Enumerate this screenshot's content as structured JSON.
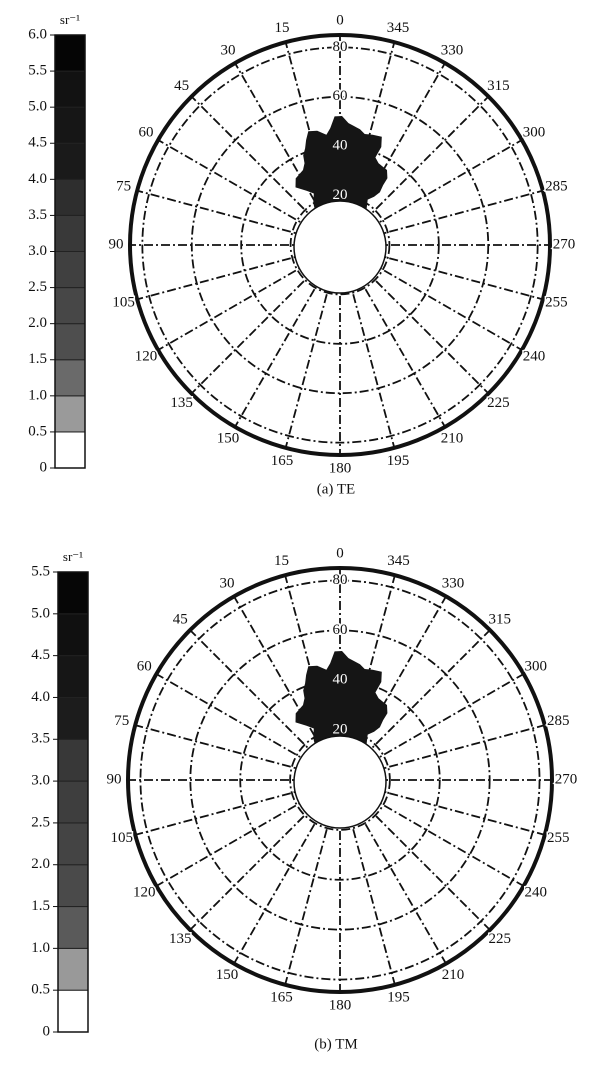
{
  "chart_data": [
    {
      "type": "polar",
      "caption": "(a) TE",
      "theta_zero": "top",
      "theta_direction": "counterclockwise",
      "thetaticks": [
        0,
        15,
        30,
        45,
        60,
        75,
        90,
        105,
        120,
        135,
        150,
        165,
        180,
        195,
        210,
        225,
        240,
        255,
        270,
        285,
        300,
        315,
        330,
        345
      ],
      "rlim": [
        0,
        85
      ],
      "rticks": [
        20,
        40,
        60,
        80
      ],
      "grid": true,
      "colorbar": {
        "label": "sr⁻¹",
        "ticks": [
          0,
          {
            "value": 0.5,
            "label": "0.5"
          },
          {
            "value": 1,
            "label": "1.0"
          },
          {
            "value": 1.5,
            "label": "1.5"
          },
          {
            "value": 2,
            "label": "2.0"
          },
          {
            "value": 2.5,
            "label": "2.5"
          },
          {
            "value": 3,
            "label": "3.0"
          },
          {
            "value": 3.5,
            "label": "3.5"
          },
          {
            "value": 4,
            "label": "4.0"
          },
          {
            "value": 4.5,
            "label": "4.5"
          },
          {
            "value": 5,
            "label": "5.0"
          },
          {
            "value": 5.5,
            "label": "5.5"
          },
          {
            "value": 6,
            "label": "6.0"
          }
        ],
        "colors": [
          "#ffffff",
          "#9a9a9a",
          "#6a6a6a",
          "#4e4e4e",
          "#474747",
          "#404040",
          "#393939",
          "#2e2e2e",
          "#1a1a1a",
          "#161616",
          "#121212",
          "#050505"
        ]
      }
    },
    {
      "type": "polar",
      "caption": "(b) TM",
      "theta_zero": "top",
      "theta_direction": "counterclockwise",
      "thetaticks": [
        0,
        15,
        30,
        45,
        60,
        75,
        90,
        105,
        120,
        135,
        150,
        165,
        180,
        195,
        210,
        225,
        240,
        255,
        270,
        285,
        300,
        315,
        330,
        345
      ],
      "rlim": [
        0,
        85
      ],
      "rticks": [
        20,
        40,
        60,
        80
      ],
      "grid": true,
      "colorbar": {
        "label": "sr⁻¹",
        "ticks": [
          0,
          {
            "value": 0.5,
            "label": "0.5"
          },
          {
            "value": 1,
            "label": "1.0"
          },
          {
            "value": 1.5,
            "label": "1.5"
          },
          {
            "value": 2,
            "label": "2.0"
          },
          {
            "value": 2.5,
            "label": "2.5"
          },
          {
            "value": 3,
            "label": "3.0"
          },
          {
            "value": 3.5,
            "label": "3.5"
          },
          {
            "value": 4,
            "label": "4.0"
          },
          {
            "value": 4.5,
            "label": "4.5"
          },
          {
            "value": 5,
            "label": "5.0"
          },
          {
            "value": 5.5,
            "label": "5.5"
          }
        ],
        "colors": [
          "#ffffff",
          "#999999",
          "#5a5a5a",
          "#4a4a4a",
          "#444444",
          "#3e3e3e",
          "#383838",
          "#1c1c1c",
          "#161616",
          "#101010",
          "#060606"
        ]
      }
    }
  ]
}
